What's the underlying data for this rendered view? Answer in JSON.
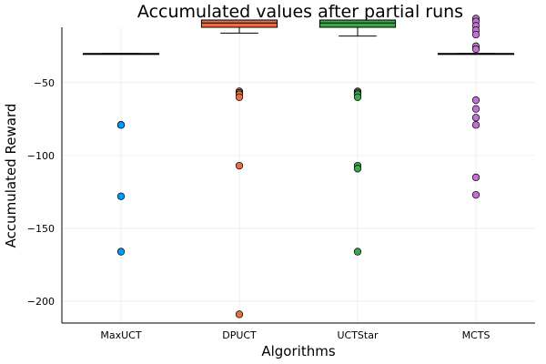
{
  "chart_data": {
    "type": "box",
    "title": "Accumulated values after partial runs",
    "xlabel": "Algorithms",
    "ylabel": "Accumulated Reward",
    "categories": [
      "MaxUCT",
      "DPUCT",
      "UCTStar",
      "MCTS"
    ],
    "ylim": [
      -215,
      -12
    ],
    "yticks": [
      -50,
      -100,
      -150,
      -200
    ],
    "grid": true,
    "legend": "none",
    "series": [
      {
        "color": "#009AFA",
        "box": {
          "whisker_low": -30,
          "q1": -30,
          "median": -30,
          "q3": -30,
          "whisker_high": -30
        },
        "outliers": [
          -79,
          -79,
          -128,
          -166
        ]
      },
      {
        "color": "#E36F47",
        "box": {
          "whisker_low": -16,
          "q1": -12,
          "median": -9,
          "q3": -7,
          "whisker_high": -7
        },
        "outliers": [
          -56,
          -57,
          -58,
          -60,
          -107,
          -209
        ]
      },
      {
        "color": "#3EA44E",
        "box": {
          "whisker_low": -18,
          "q1": -12,
          "median": -9,
          "q3": -7,
          "whisker_high": -7
        },
        "outliers": [
          -56,
          -57,
          -58,
          -60,
          -107,
          -109,
          -166
        ]
      },
      {
        "color": "#C371D2",
        "box": {
          "whisker_low": -30,
          "q1": -30,
          "median": -30,
          "q3": -30,
          "whisker_high": -30
        },
        "outliers": [
          -6,
          -8,
          -11,
          -14,
          -17,
          -25,
          -27,
          -62,
          -68,
          -74,
          -79,
          -115,
          -127
        ]
      }
    ]
  }
}
